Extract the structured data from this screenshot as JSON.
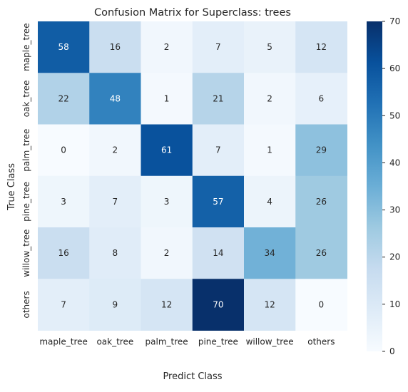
{
  "chart_data": {
    "type": "heatmap",
    "title": "Confusion Matrix for Superclass: trees",
    "xlabel": "Predict Class",
    "ylabel": "True Class",
    "x_categories": [
      "maple_tree",
      "oak_tree",
      "palm_tree",
      "pine_tree",
      "willow_tree",
      "others"
    ],
    "y_categories": [
      "maple_tree",
      "oak_tree",
      "palm_tree",
      "pine_tree",
      "willow_tree",
      "others"
    ],
    "values": [
      [
        58,
        16,
        2,
        7,
        5,
        12
      ],
      [
        22,
        48,
        1,
        21,
        2,
        6
      ],
      [
        0,
        2,
        61,
        7,
        1,
        29
      ],
      [
        3,
        7,
        3,
        57,
        4,
        26
      ],
      [
        16,
        8,
        2,
        14,
        34,
        26
      ],
      [
        7,
        9,
        12,
        70,
        12,
        0
      ]
    ],
    "colorbar": {
      "colormap": "Blues",
      "range": [
        0,
        70
      ],
      "ticks": [
        0,
        10,
        20,
        30,
        40,
        50,
        60,
        70
      ]
    },
    "grid": false,
    "legend": "colorbar-right"
  }
}
